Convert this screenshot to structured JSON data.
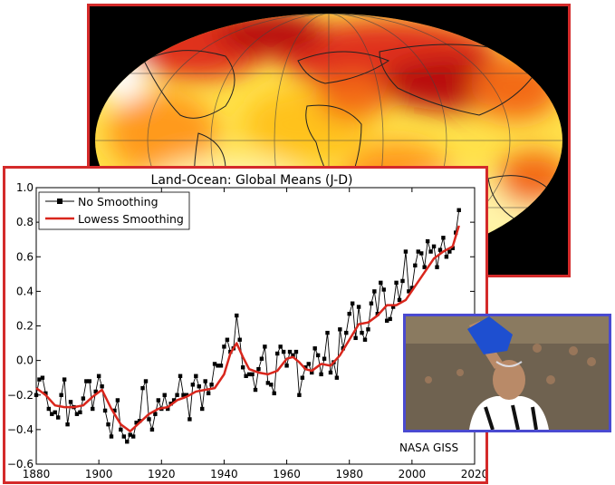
{
  "map": {
    "palette": [
      "#ffffff",
      "#fff4a8",
      "#ffe14a",
      "#ffc21f",
      "#ff9a1a",
      "#f36a14",
      "#e0301a",
      "#b8100f"
    ]
  },
  "photo": {
    "colors": {
      "water": "#6f6250",
      "skin": "#b98a68",
      "shirt": "#ffffff",
      "jug": "#1e4fd0"
    }
  },
  "chart_data": {
    "type": "line",
    "title": "Land-Ocean: Global Means (J-D)",
    "xlabel": "",
    "ylabel": "",
    "xlim": [
      1880,
      2020
    ],
    "ylim": [
      -0.6,
      1.0
    ],
    "xticks": [
      1880,
      1900,
      1920,
      1940,
      1960,
      1980,
      2000,
      2020
    ],
    "yticks": [
      -0.6,
      -0.4,
      -0.2,
      0.0,
      0.2,
      0.4,
      0.6,
      0.8,
      1.0
    ],
    "ytick_labels": [
      "−0.6",
      "−0.4",
      "−0.2",
      "0.0",
      "0.2",
      "0.4",
      "0.6",
      "0.8",
      "1.0"
    ],
    "legend_position": "top-left",
    "annotation": "NASA GISS",
    "series": [
      {
        "name": "No Smoothing",
        "color": "#000000",
        "marker": "square",
        "x": [
          1880,
          1881,
          1882,
          1883,
          1884,
          1885,
          1886,
          1887,
          1888,
          1889,
          1890,
          1891,
          1892,
          1893,
          1894,
          1895,
          1896,
          1897,
          1898,
          1899,
          1900,
          1901,
          1902,
          1903,
          1904,
          1905,
          1906,
          1907,
          1908,
          1909,
          1910,
          1911,
          1912,
          1913,
          1914,
          1915,
          1916,
          1917,
          1918,
          1919,
          1920,
          1921,
          1922,
          1923,
          1924,
          1925,
          1926,
          1927,
          1928,
          1929,
          1930,
          1931,
          1932,
          1933,
          1934,
          1935,
          1936,
          1937,
          1938,
          1939,
          1940,
          1941,
          1942,
          1943,
          1944,
          1945,
          1946,
          1947,
          1948,
          1949,
          1950,
          1951,
          1952,
          1953,
          1954,
          1955,
          1956,
          1957,
          1958,
          1959,
          1960,
          1961,
          1962,
          1963,
          1964,
          1965,
          1966,
          1967,
          1968,
          1969,
          1970,
          1971,
          1972,
          1973,
          1974,
          1975,
          1976,
          1977,
          1978,
          1979,
          1980,
          1981,
          1982,
          1983,
          1984,
          1985,
          1986,
          1987,
          1988,
          1989,
          1990,
          1991,
          1992,
          1993,
          1994,
          1995,
          1996,
          1997,
          1998,
          1999,
          2000,
          2001,
          2002,
          2003,
          2004,
          2005,
          2006,
          2007,
          2008,
          2009,
          2010,
          2011,
          2012,
          2013,
          2014,
          2015
        ],
        "y": [
          -0.2,
          -0.11,
          -0.1,
          -0.19,
          -0.28,
          -0.31,
          -0.3,
          -0.33,
          -0.2,
          -0.11,
          -0.37,
          -0.24,
          -0.27,
          -0.31,
          -0.3,
          -0.22,
          -0.12,
          -0.12,
          -0.28,
          -0.18,
          -0.09,
          -0.15,
          -0.29,
          -0.37,
          -0.44,
          -0.29,
          -0.23,
          -0.4,
          -0.44,
          -0.47,
          -0.43,
          -0.44,
          -0.36,
          -0.35,
          -0.16,
          -0.12,
          -0.34,
          -0.4,
          -0.31,
          -0.23,
          -0.28,
          -0.2,
          -0.28,
          -0.25,
          -0.23,
          -0.2,
          -0.09,
          -0.2,
          -0.2,
          -0.34,
          -0.14,
          -0.09,
          -0.15,
          -0.28,
          -0.12,
          -0.19,
          -0.14,
          -0.02,
          -0.03,
          -0.03,
          0.08,
          0.12,
          0.05,
          0.07,
          0.26,
          0.12,
          -0.04,
          -0.09,
          -0.08,
          -0.08,
          -0.17,
          -0.05,
          0.01,
          0.08,
          -0.13,
          -0.14,
          -0.19,
          0.04,
          0.08,
          0.05,
          -0.03,
          0.05,
          0.03,
          0.05,
          -0.2,
          -0.1,
          -0.04,
          -0.02,
          -0.07,
          0.07,
          0.03,
          -0.08,
          0.01,
          0.16,
          -0.07,
          -0.01,
          -0.1,
          0.18,
          0.07,
          0.16,
          0.27,
          0.33,
          0.13,
          0.31,
          0.16,
          0.12,
          0.18,
          0.33,
          0.4,
          0.27,
          0.45,
          0.41,
          0.23,
          0.24,
          0.31,
          0.45,
          0.35,
          0.46,
          0.63,
          0.4,
          0.42,
          0.55,
          0.63,
          0.62,
          0.54,
          0.69,
          0.63,
          0.66,
          0.54,
          0.64,
          0.71,
          0.6,
          0.63,
          0.65,
          0.74,
          0.87
        ]
      },
      {
        "name": "Lowess Smoothing",
        "color": "#d9261c",
        "marker": "none",
        "x": [
          1880,
          1883,
          1886,
          1889,
          1892,
          1895,
          1898,
          1901,
          1904,
          1907,
          1910,
          1913,
          1916,
          1919,
          1922,
          1925,
          1928,
          1931,
          1934,
          1937,
          1940,
          1942,
          1944,
          1946,
          1948,
          1951,
          1954,
          1957,
          1960,
          1962,
          1964,
          1966,
          1968,
          1971,
          1974,
          1977,
          1980,
          1983,
          1986,
          1989,
          1992,
          1995,
          1998,
          2001,
          2004,
          2007,
          2010,
          2013,
          2015
        ],
        "y": [
          -0.16,
          -0.2,
          -0.26,
          -0.27,
          -0.27,
          -0.26,
          -0.21,
          -0.17,
          -0.28,
          -0.37,
          -0.41,
          -0.36,
          -0.31,
          -0.28,
          -0.27,
          -0.23,
          -0.21,
          -0.18,
          -0.17,
          -0.16,
          -0.08,
          0.04,
          0.1,
          0.02,
          -0.05,
          -0.07,
          -0.08,
          -0.06,
          0.01,
          0.02,
          -0.01,
          -0.05,
          -0.06,
          -0.02,
          -0.03,
          0.03,
          0.12,
          0.21,
          0.22,
          0.26,
          0.32,
          0.32,
          0.35,
          0.43,
          0.51,
          0.59,
          0.63,
          0.66,
          0.78
        ]
      }
    ]
  }
}
